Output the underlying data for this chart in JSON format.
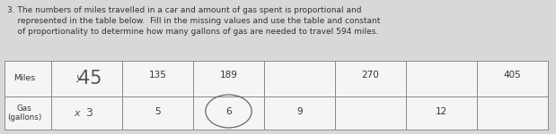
{
  "paragraph": "3. The numbers of miles travelled in a car and amount of gas spent is proportional and\n    represented in the table below.  Fill in the missing values and use the table and constant\n    of proportionality to determine how many gallons of gas are needed to travel 594 miles.",
  "miles_label": "Miles",
  "gas_label": "Gas\n(gallons)",
  "miles_values": [
    "y  45",
    "135",
    "189",
    "",
    "270",
    "",
    "405"
  ],
  "gas_values": [
    "x  3",
    "5",
    "6",
    "9",
    "",
    "12",
    ""
  ],
  "miles_large": [
    true,
    false,
    false,
    false,
    false,
    false,
    false
  ],
  "gas_large": [
    true,
    false,
    false,
    false,
    false,
    false,
    false
  ],
  "bg_color": "#d8d8d8",
  "table_bg": "#f5f5f5",
  "text_color": "#333333",
  "para_fontsize": 6.5,
  "table_fontsize": 7.5,
  "large_fontsize": 13,
  "label_fontsize": 6.8,
  "circle_col": 2
}
